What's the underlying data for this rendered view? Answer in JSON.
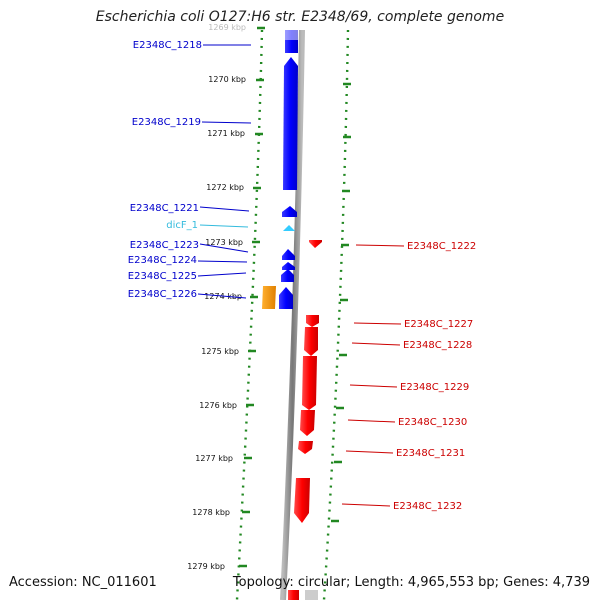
{
  "title": "Escherichia coli O127:H6 str. E2348/69, complete genome",
  "footer": {
    "accession": "Accession: NC_011601",
    "summary": "Topology: circular; Length: 4,965,553 bp; Genes: 4,739"
  },
  "scale_labels": [
    "1269 kbp",
    "1270 kbp",
    "1271 kbp",
    "1272 kbp",
    "1273 kbp",
    "1274 kbp",
    "1275 kbp",
    "1276 kbp",
    "1277 kbp",
    "1278 kbp",
    "1279 kbp"
  ],
  "genes_left": [
    {
      "name": "E2348C_1218",
      "color": "#0000cc"
    },
    {
      "name": "E2348C_1219",
      "color": "#0000cc"
    },
    {
      "name": "E2348C_1221",
      "color": "#0000cc"
    },
    {
      "name": "dicF_1",
      "color": "#33bbdd"
    },
    {
      "name": "E2348C_1223",
      "color": "#0000cc"
    },
    {
      "name": "E2348C_1224",
      "color": "#0000cc"
    },
    {
      "name": "E2348C_1225",
      "color": "#0000cc"
    },
    {
      "name": "E2348C_1226",
      "color": "#0000cc"
    }
  ],
  "genes_right": [
    {
      "name": "E2348C_1222",
      "color": "#cc0000"
    },
    {
      "name": "E2348C_1227",
      "color": "#cc0000"
    },
    {
      "name": "E2348C_1228",
      "color": "#cc0000"
    },
    {
      "name": "E2348C_1229",
      "color": "#cc0000"
    },
    {
      "name": "E2348C_1230",
      "color": "#cc0000"
    },
    {
      "name": "E2348C_1231",
      "color": "#cc0000"
    },
    {
      "name": "E2348C_1232",
      "color": "#cc0000"
    }
  ],
  "colors": {
    "forward_cds": "#0000ff",
    "reverse_cds": "#ff0000",
    "rna": "#33ccff",
    "other_feature": "#ff9900",
    "scale_ticks": "#228822",
    "backbone": "#888888"
  }
}
